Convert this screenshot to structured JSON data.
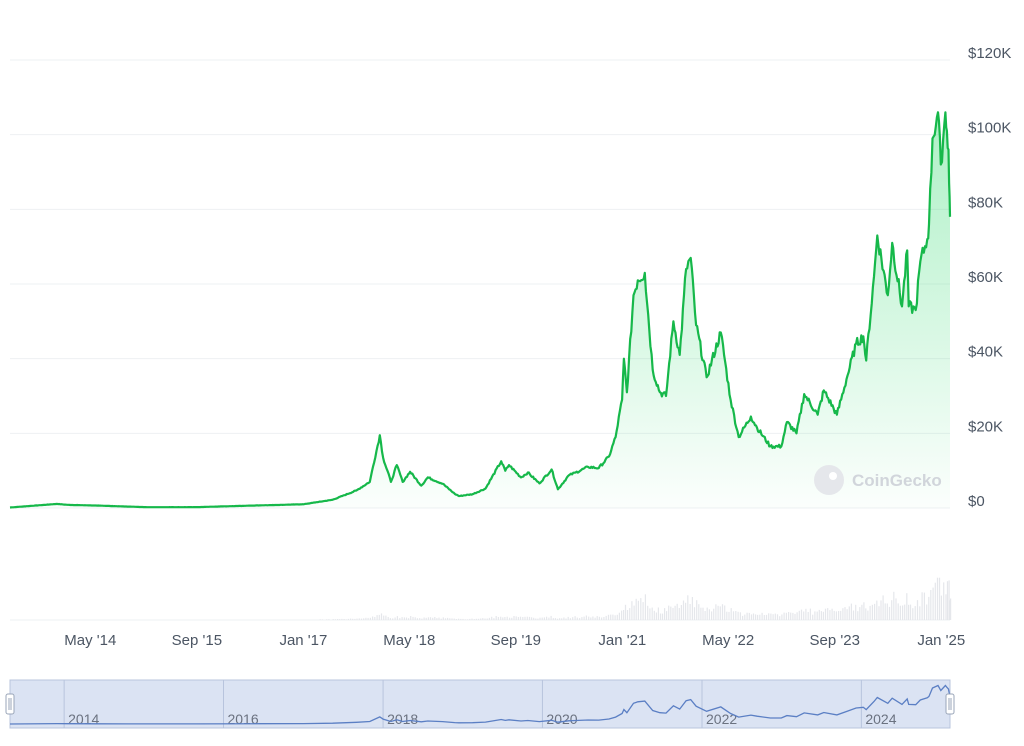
{
  "watermark": "CoinGecko",
  "colors": {
    "line": "#16b84a",
    "area_top": "#4ade80",
    "grid": "#eef0f3",
    "volume": "#e5e7eb",
    "navigator_bg": "#dbe3f3",
    "navigator_line": "#5b7fc4",
    "navigator_border": "#b8c4dd"
  },
  "chart_data": {
    "type": "area",
    "title": "",
    "xlabel": "",
    "ylabel": "",
    "x_domain": [
      "2013-04-28",
      "2025-02-10"
    ],
    "ylim": [
      0,
      120000
    ],
    "y_ticks": [
      {
        "value": 0,
        "label": "$0"
      },
      {
        "value": 20000,
        "label": "$20K"
      },
      {
        "value": 40000,
        "label": "$40K"
      },
      {
        "value": 60000,
        "label": "$60K"
      },
      {
        "value": 80000,
        "label": "$80K"
      },
      {
        "value": 100000,
        "label": "$100K"
      },
      {
        "value": 120000,
        "label": "$120K"
      }
    ],
    "x_ticks": [
      {
        "date": "2014-05-01",
        "label": "May '14"
      },
      {
        "date": "2015-09-01",
        "label": "Sep '15"
      },
      {
        "date": "2017-01-01",
        "label": "Jan '17"
      },
      {
        "date": "2018-05-01",
        "label": "May '18"
      },
      {
        "date": "2019-09-01",
        "label": "Sep '19"
      },
      {
        "date": "2021-01-01",
        "label": "Jan '21"
      },
      {
        "date": "2022-05-01",
        "label": "May '22"
      },
      {
        "date": "2023-09-01",
        "label": "Sep '23"
      },
      {
        "date": "2025-01-01",
        "label": "Jan '25"
      }
    ],
    "navigator_ticks": [
      {
        "date": "2014-01-01",
        "label": "2014"
      },
      {
        "date": "2016-01-01",
        "label": "2016"
      },
      {
        "date": "2018-01-01",
        "label": "2018"
      },
      {
        "date": "2020-01-01",
        "label": "2020"
      },
      {
        "date": "2022-01-01",
        "label": "2022"
      },
      {
        "date": "2024-01-01",
        "label": "2024"
      }
    ],
    "series": [
      {
        "values": [
          [
            "2013-04-28",
            135
          ],
          [
            "2013-11-30",
            1100
          ],
          [
            "2014-01-15",
            850
          ],
          [
            "2014-06-01",
            650
          ],
          [
            "2015-01-15",
            220
          ],
          [
            "2015-09-01",
            230
          ],
          [
            "2016-06-15",
            700
          ],
          [
            "2017-01-01",
            1000
          ],
          [
            "2017-05-15",
            2200
          ],
          [
            "2017-09-01",
            4700
          ],
          [
            "2017-11-01",
            7000
          ],
          [
            "2017-12-17",
            19500
          ],
          [
            "2018-01-01",
            13500
          ],
          [
            "2018-02-06",
            7000
          ],
          [
            "2018-03-05",
            11500
          ],
          [
            "2018-04-01",
            7000
          ],
          [
            "2018-05-05",
            9700
          ],
          [
            "2018-06-25",
            6000
          ],
          [
            "2018-07-25",
            8200
          ],
          [
            "2018-10-01",
            6500
          ],
          [
            "2018-11-25",
            3800
          ],
          [
            "2018-12-15",
            3200
          ],
          [
            "2019-02-15",
            3700
          ],
          [
            "2019-04-15",
            5200
          ],
          [
            "2019-06-26",
            12500
          ],
          [
            "2019-07-15",
            10000
          ],
          [
            "2019-08-01",
            11500
          ],
          [
            "2019-09-25",
            8200
          ],
          [
            "2019-10-26",
            9500
          ],
          [
            "2019-12-18",
            6600
          ],
          [
            "2020-02-12",
            10300
          ],
          [
            "2020-03-12",
            5000
          ],
          [
            "2020-04-30",
            8700
          ],
          [
            "2020-06-01",
            9500
          ],
          [
            "2020-07-28",
            11000
          ],
          [
            "2020-09-15",
            10700
          ],
          [
            "2020-11-01",
            13800
          ],
          [
            "2020-12-01",
            19000
          ],
          [
            "2020-12-31",
            29000
          ],
          [
            "2021-01-08",
            40000
          ],
          [
            "2021-01-22",
            31000
          ],
          [
            "2021-02-21",
            57000
          ],
          [
            "2021-03-13",
            61000
          ],
          [
            "2021-04-14",
            63000
          ],
          [
            "2021-05-20",
            37000
          ],
          [
            "2021-06-22",
            31000
          ],
          [
            "2021-07-20",
            30000
          ],
          [
            "2021-08-23",
            50000
          ],
          [
            "2021-09-21",
            41000
          ],
          [
            "2021-10-20",
            64000
          ],
          [
            "2021-11-10",
            67000
          ],
          [
            "2021-12-05",
            49000
          ],
          [
            "2022-01-22",
            35000
          ],
          [
            "2022-03-28",
            47000
          ],
          [
            "2022-05-12",
            29000
          ],
          [
            "2022-06-18",
            19000
          ],
          [
            "2022-08-13",
            24500
          ],
          [
            "2022-09-10",
            21500
          ],
          [
            "2022-11-10",
            16500
          ],
          [
            "2022-12-30",
            16500
          ],
          [
            "2023-01-25",
            23000
          ],
          [
            "2023-03-10",
            20000
          ],
          [
            "2023-04-14",
            30500
          ],
          [
            "2023-06-15",
            25000
          ],
          [
            "2023-07-13",
            31500
          ],
          [
            "2023-09-11",
            25000
          ],
          [
            "2023-10-25",
            34500
          ],
          [
            "2023-12-08",
            44000
          ],
          [
            "2024-01-10",
            46000
          ],
          [
            "2024-01-23",
            39500
          ],
          [
            "2024-02-28",
            62000
          ],
          [
            "2024-03-14",
            73000
          ],
          [
            "2024-05-01",
            57000
          ],
          [
            "2024-05-21",
            71000
          ],
          [
            "2024-07-05",
            54000
          ],
          [
            "2024-07-29",
            69000
          ],
          [
            "2024-08-05",
            54000
          ],
          [
            "2024-09-06",
            53000
          ],
          [
            "2024-09-27",
            66000
          ],
          [
            "2024-10-29",
            72000
          ],
          [
            "2024-11-06",
            76000
          ],
          [
            "2024-11-22",
            99000
          ],
          [
            "2024-12-17",
            106000
          ],
          [
            "2024-12-30",
            92000
          ],
          [
            "2025-01-20",
            106000
          ],
          [
            "2025-01-27",
            101000
          ],
          [
            "2025-02-03",
            96000
          ],
          [
            "2025-02-06",
            87000
          ],
          [
            "2025-02-10",
            78000
          ]
        ]
      }
    ]
  }
}
